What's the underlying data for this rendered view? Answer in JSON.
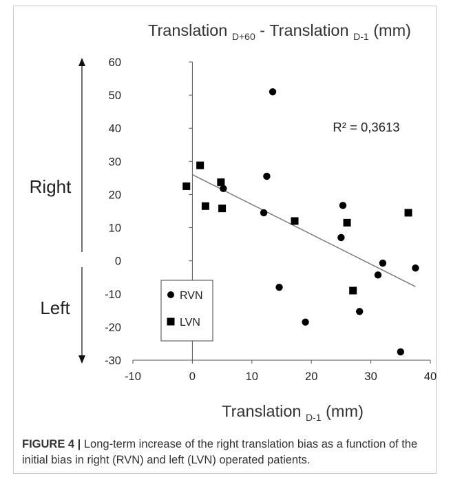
{
  "chart_data": {
    "type": "scatter",
    "title_main": "Translation ",
    "title_sub1": "D+60",
    "title_mid": " - Translation ",
    "title_sub2": "D-1",
    "title_end": " (mm)",
    "xlabel_main": "Translation ",
    "xlabel_sub": "D-1",
    "xlabel_end": " (mm)",
    "xlim": [
      -10,
      40
    ],
    "ylim": [
      -30,
      60
    ],
    "xticks": [
      -10,
      0,
      10,
      20,
      30,
      40
    ],
    "yticks": [
      -30,
      -20,
      -10,
      0,
      10,
      20,
      30,
      40,
      50,
      60
    ],
    "legend_position": "bottom-left",
    "grid": false,
    "series": [
      {
        "name": "RVN",
        "marker": "circle",
        "color": "#000000",
        "points": [
          {
            "x": 13.5,
            "y": 51
          },
          {
            "x": 12.5,
            "y": 25.5
          },
          {
            "x": 5.2,
            "y": 21.8
          },
          {
            "x": 12.0,
            "y": 14.5
          },
          {
            "x": 25.3,
            "y": 16.7
          },
          {
            "x": 25.0,
            "y": 7.0
          },
          {
            "x": 32.0,
            "y": -0.7
          },
          {
            "x": 37.5,
            "y": -2.2
          },
          {
            "x": 31.2,
            "y": -4.3
          },
          {
            "x": 14.6,
            "y": -8.0
          },
          {
            "x": 28.1,
            "y": -15.3
          },
          {
            "x": 19.0,
            "y": -18.5
          },
          {
            "x": 35.0,
            "y": -27.5
          }
        ]
      },
      {
        "name": "LVN",
        "marker": "square",
        "color": "#000000",
        "points": [
          {
            "x": -1.0,
            "y": 22.5
          },
          {
            "x": 1.3,
            "y": 28.8
          },
          {
            "x": 2.2,
            "y": 16.5
          },
          {
            "x": 4.8,
            "y": 23.7
          },
          {
            "x": 5.0,
            "y": 15.8
          },
          {
            "x": 17.2,
            "y": 12.0
          },
          {
            "x": 26.0,
            "y": 11.5
          },
          {
            "x": 36.3,
            "y": 14.5
          },
          {
            "x": 27.0,
            "y": -9.0
          }
        ]
      }
    ],
    "trendline": {
      "x": [
        0,
        37.5
      ],
      "y": [
        26,
        -7.8
      ]
    },
    "r2_label": "R² = 0,3613",
    "direction_labels": {
      "up": "Right",
      "down": "Left"
    }
  },
  "caption": {
    "label": "FIGURE 4 |",
    "text": " Long-term increase of the right translation bias as a function of the initial bias in right (RVN) and left (LVN) operated patients."
  }
}
